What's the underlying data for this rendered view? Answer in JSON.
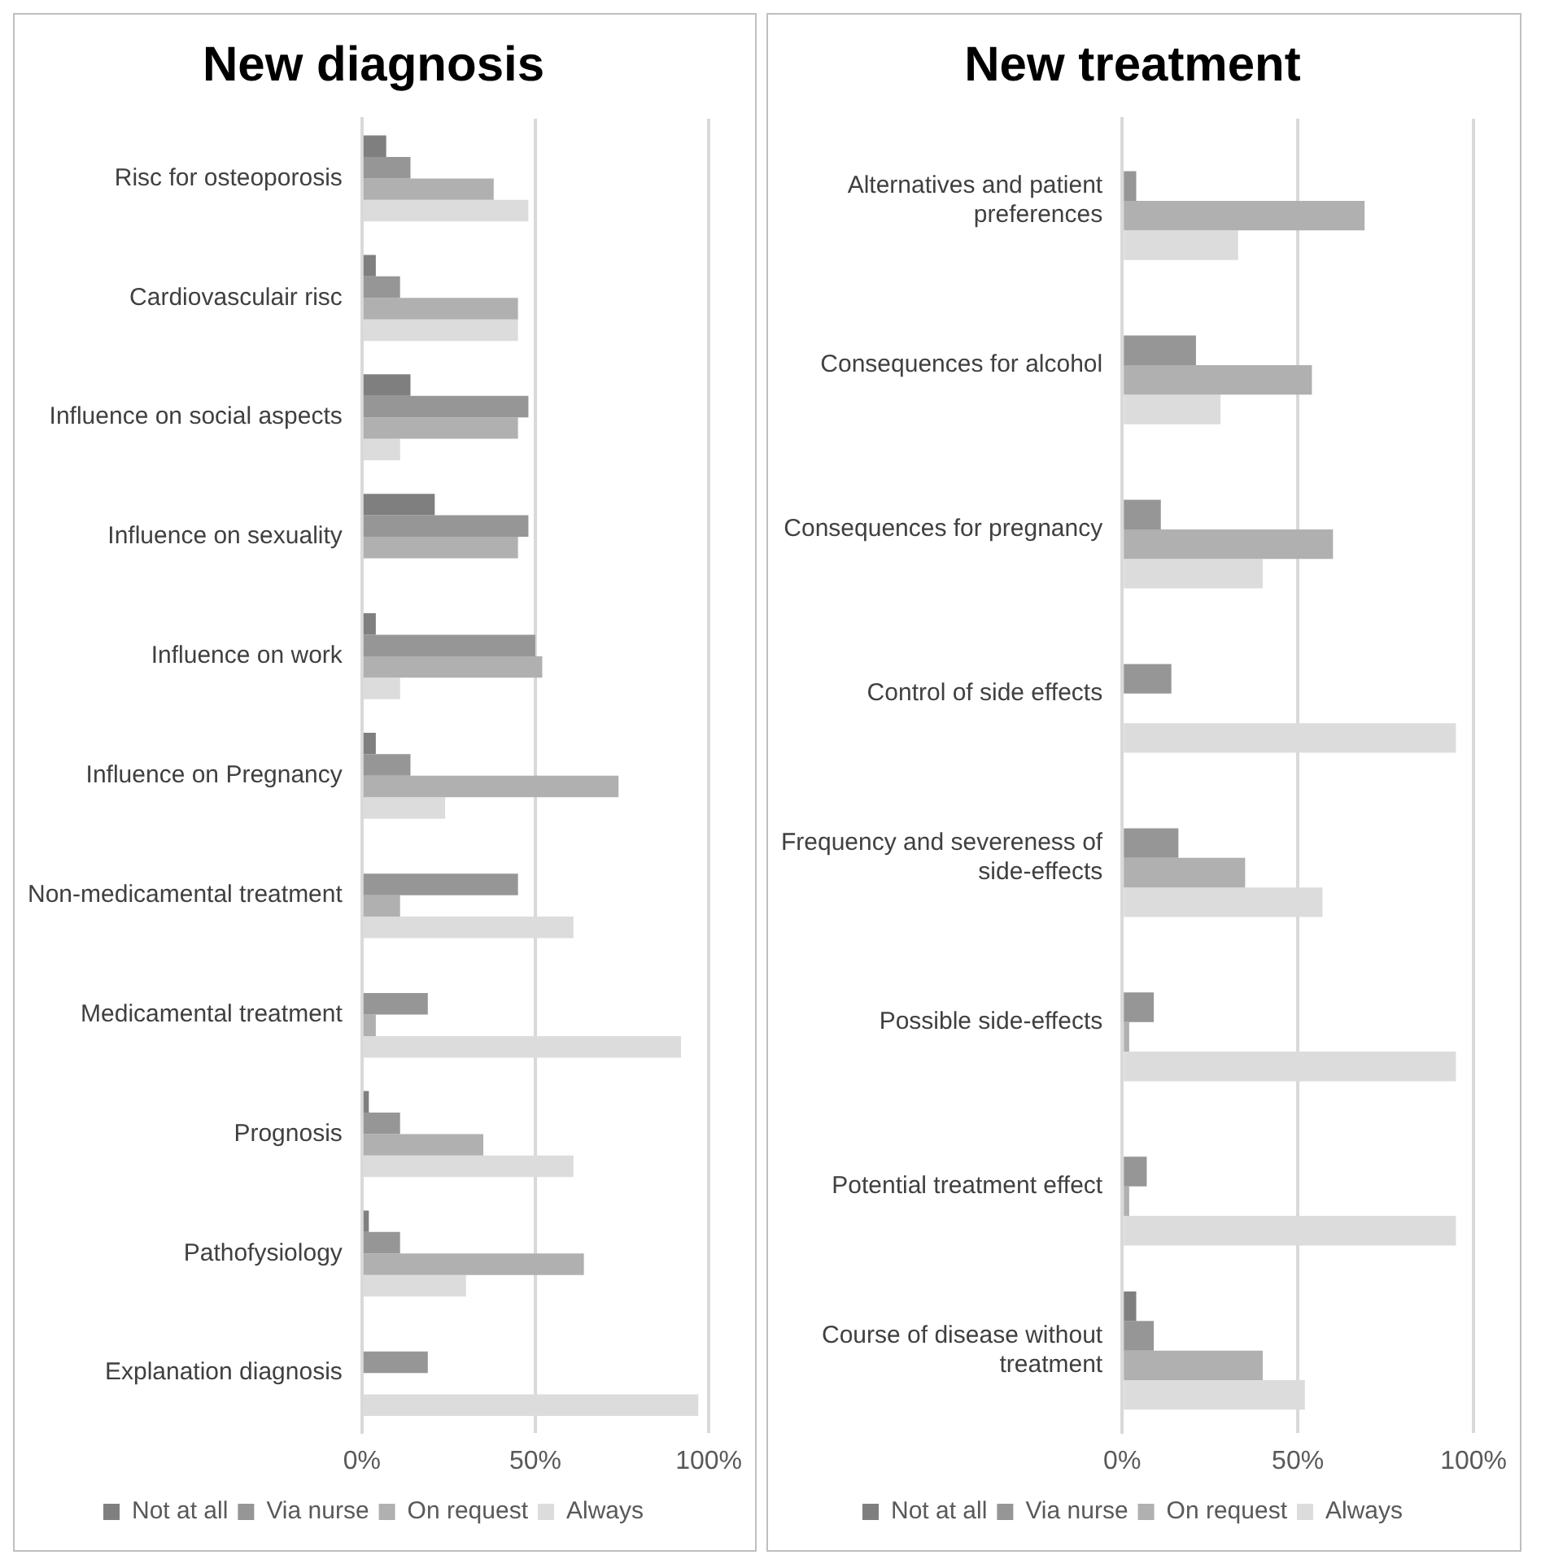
{
  "chart_data": [
    {
      "type": "bar",
      "orientation": "horizontal",
      "title": "New diagnosis",
      "categories": [
        "Risc for osteoporosis",
        "Cardiovasculair risc",
        "Influence on social aspects",
        "Influence on sexuality",
        "Influence on work",
        "Influence on Pregnancy",
        "Non-medicamental treatment",
        "Medicamental treatment",
        "Prognosis",
        "Pathofysiology",
        "Explanation diagnosis"
      ],
      "series": [
        {
          "name": "Not at all",
          "color": "#7f7f7f",
          "values": [
            7,
            4,
            14,
            21,
            4,
            4,
            0,
            0,
            2,
            2,
            0
          ]
        },
        {
          "name": "Via nurse",
          "color": "#969696",
          "values": [
            14,
            11,
            48,
            48,
            50,
            14,
            45,
            19,
            11,
            11,
            19
          ]
        },
        {
          "name": "On request",
          "color": "#b0b0b0",
          "values": [
            38,
            45,
            45,
            45,
            52,
            74,
            11,
            4,
            35,
            64,
            0
          ]
        },
        {
          "name": "Always",
          "color": "#dcdcdc",
          "values": [
            48,
            45,
            11,
            0,
            11,
            24,
            61,
            92,
            61,
            30,
            97
          ]
        }
      ],
      "xlim": [
        0,
        100
      ],
      "xticks": [
        {
          "value": 0,
          "label": "0%"
        },
        {
          "value": 50,
          "label": "50%"
        },
        {
          "value": 100,
          "label": "100%"
        }
      ],
      "grid": "x",
      "legend": "bottom"
    },
    {
      "type": "bar",
      "orientation": "horizontal",
      "title": "New treatment",
      "categories": [
        "Alternatives and patient preferences",
        "Consequences for alcohol",
        "Consequences for pregnancy",
        "Control of side effects",
        "Frequency and severeness of side-effects",
        "Possible side-effects",
        "Potential treatment effect",
        "Course of disease without treatment"
      ],
      "series": [
        {
          "name": "Not at all",
          "color": "#7f7f7f",
          "values": [
            0,
            0,
            0,
            0,
            0,
            0,
            0,
            4
          ]
        },
        {
          "name": "Via nurse",
          "color": "#969696",
          "values": [
            4,
            21,
            11,
            14,
            16,
            9,
            7,
            9
          ]
        },
        {
          "name": "On request",
          "color": "#b0b0b0",
          "values": [
            69,
            54,
            60,
            0,
            35,
            2,
            2,
            40
          ]
        },
        {
          "name": "Always",
          "color": "#dcdcdc",
          "values": [
            33,
            28,
            40,
            95,
            57,
            95,
            95,
            52
          ]
        }
      ],
      "xlim": [
        0,
        100
      ],
      "xticks": [
        {
          "value": 0,
          "label": "0%"
        },
        {
          "value": 50,
          "label": "50%"
        },
        {
          "value": 100,
          "label": "100%"
        }
      ],
      "grid": "x",
      "legend": "bottom"
    }
  ]
}
